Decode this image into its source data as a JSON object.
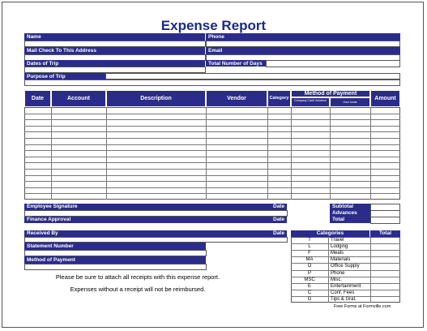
{
  "title": "Expense Report",
  "fields": {
    "name": "Name",
    "phone": "Phone",
    "mail_check": "Mail Check To This Address",
    "email": "Email",
    "dates_of_trip": "Dates of Trip",
    "total_days": "Total Number of Days",
    "purpose": "Purpose of Trip"
  },
  "table": {
    "headers": {
      "date": "Date",
      "account": "Account",
      "description": "Description",
      "vendor": "Vendor",
      "category": "Category",
      "method": "Method of Payment",
      "company_card": "Company Card/ Advance",
      "own_funds": "Own funds",
      "amount": "Amount"
    }
  },
  "signatures": {
    "employee_signature": "Employee Signature",
    "finance_approval": "Finance Approval",
    "received_by": "Received By",
    "date": "Date",
    "statement_number": "Statement Number",
    "method_of_payment": "Method of Payment"
  },
  "totals": {
    "subtotal": "Subtotal",
    "advances": "Advances",
    "total": "Total"
  },
  "notes": {
    "receipts": "Please be sure to attach all receipts with this expense report.",
    "reimbursed": "Expenses without a receipt will not be reimbursed."
  },
  "categories": {
    "header": "Categories",
    "total_header": "Total",
    "items": [
      {
        "code": "T",
        "label": "Travel"
      },
      {
        "code": "L",
        "label": "Lodging"
      },
      {
        "code": "F",
        "label": "Meals"
      },
      {
        "code": "MA",
        "label": "Materials"
      },
      {
        "code": "O",
        "label": "Office Supply"
      },
      {
        "code": "P",
        "label": "Phone"
      },
      {
        "code": "MSC",
        "label": "Misc."
      },
      {
        "code": "E",
        "label": "Entertainment"
      },
      {
        "code": "C",
        "label": "Conf. Fees"
      },
      {
        "code": "G",
        "label": "Tips & Grat."
      }
    ]
  },
  "footer": "Free Forms at Formville.com"
}
